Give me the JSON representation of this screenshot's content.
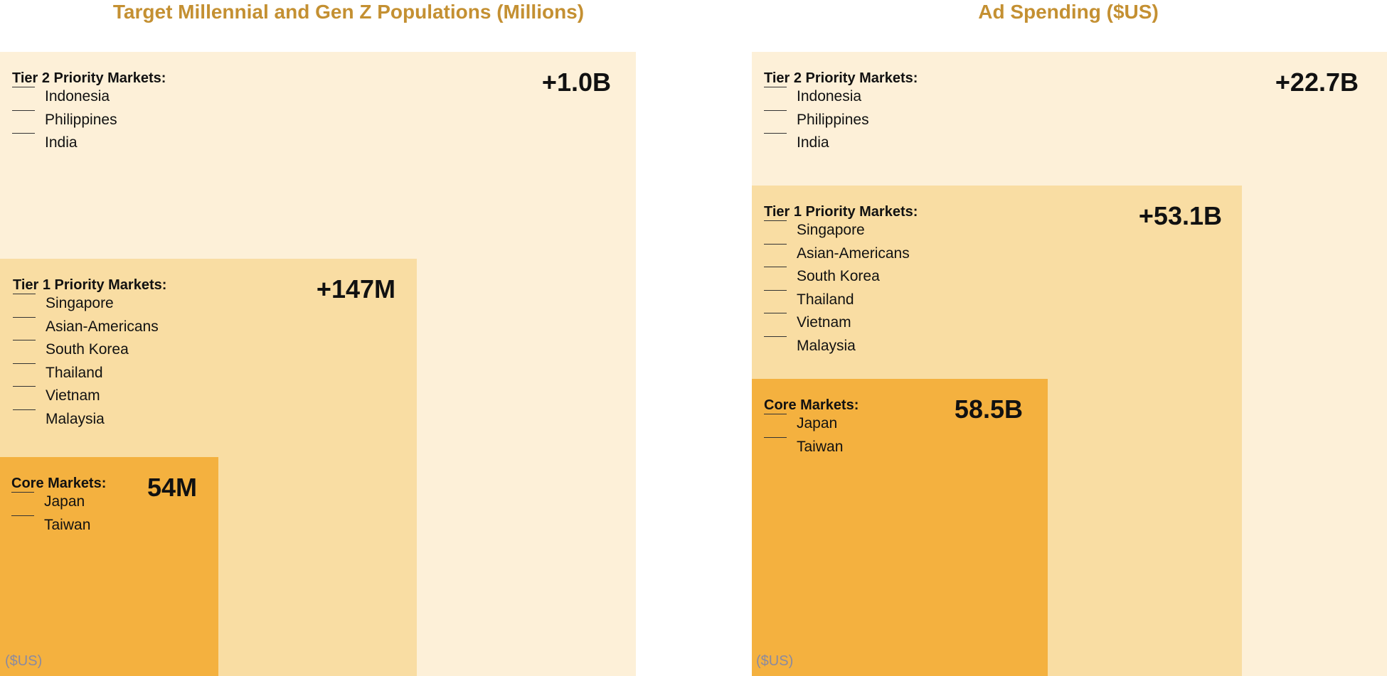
{
  "left_panel": {
    "title": "Target Millennial and Gen Z Populations (Millions)",
    "unit_note": "($US)",
    "tier2": {
      "heading": "Tier 2 Priority Markets:",
      "value": "+1.0B",
      "markets": [
        "Indonesia",
        "Philippines",
        "India"
      ]
    },
    "tier1": {
      "heading": "Tier 1 Priority Markets:",
      "value": "+147M",
      "markets": [
        "Singapore",
        "Asian-Americans",
        "South Korea",
        "Thailand",
        "Vietnam",
        "Malaysia"
      ]
    },
    "core": {
      "heading": "Core Markets:",
      "value": "54M",
      "markets": [
        "Japan",
        "Taiwan"
      ]
    }
  },
  "right_panel": {
    "title": "Ad Spending ($US)",
    "unit_note": "($US)",
    "tier2": {
      "heading": "Tier 2 Priority Markets:",
      "value": "+22.7B",
      "markets": [
        "Indonesia",
        "Philippines",
        "India"
      ]
    },
    "tier1": {
      "heading": "Tier 1 Priority Markets:",
      "value": "+53.1B",
      "markets": [
        "Singapore",
        "Asian-Americans",
        "South Korea",
        "Thailand",
        "Vietnam",
        "Malaysia"
      ]
    },
    "core": {
      "heading": "Core Markets:",
      "value": "58.5B",
      "markets": [
        "Japan",
        "Taiwan"
      ]
    }
  },
  "colors": {
    "title": "#c49032",
    "tier2": "#fdf0d8",
    "tier1": "#f9dda3",
    "core": "#f4b13f"
  }
}
